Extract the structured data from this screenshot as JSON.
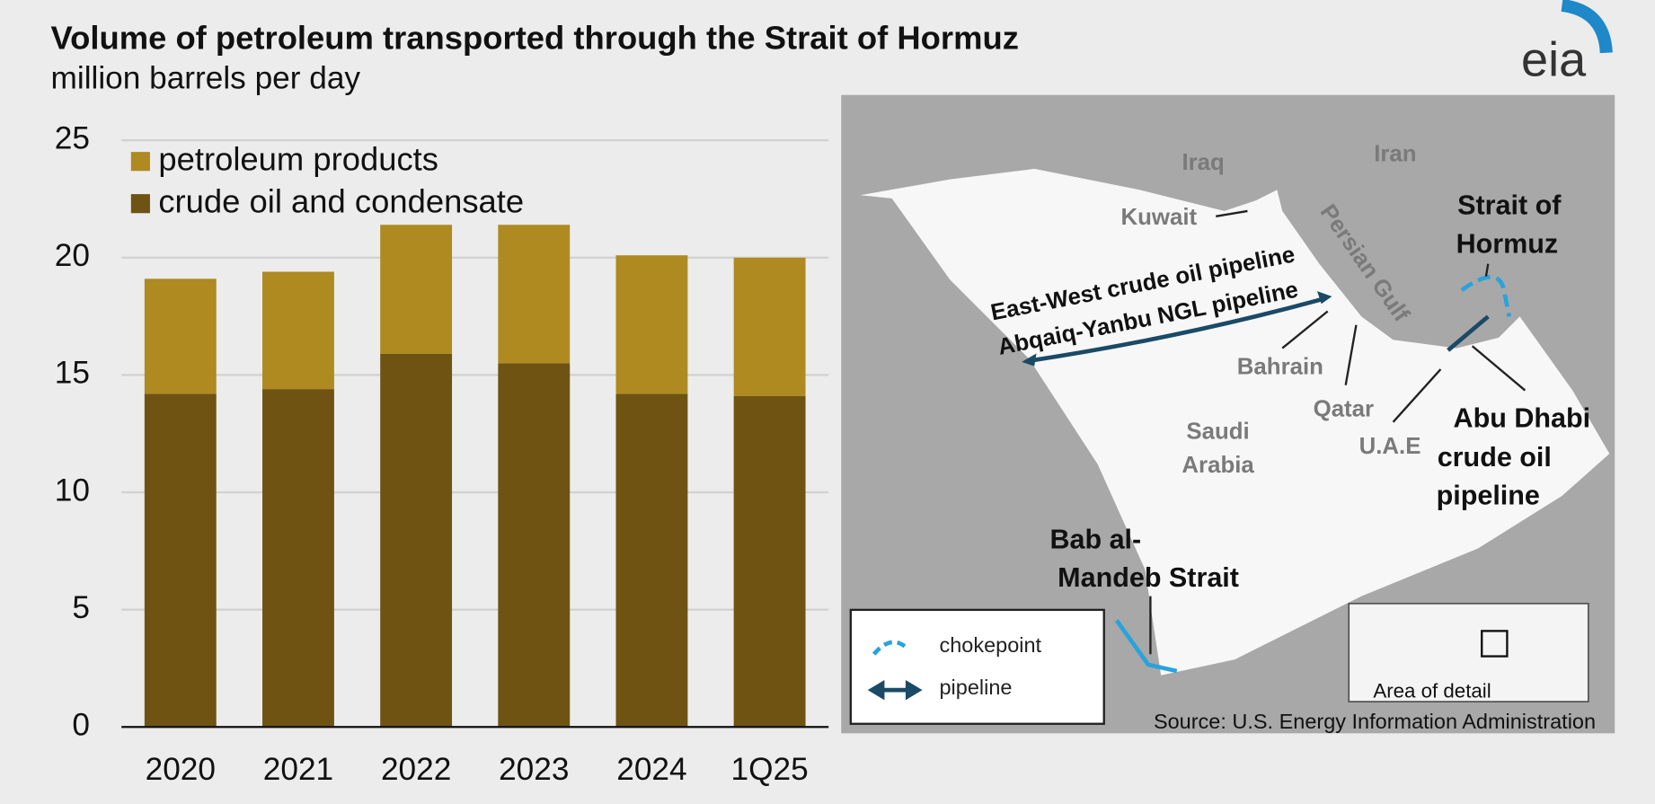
{
  "chart_data": {
    "type": "stacked-bar",
    "title": "Volume of petroleum transported through the Strait of Hormuz",
    "subtitle": "million barrels per day",
    "categories": [
      "2020",
      "2021",
      "2022",
      "2023",
      "2024",
      "1Q25"
    ],
    "series": [
      {
        "name": "crude oil and condensate",
        "color": "#6e5312",
        "values": [
          14.2,
          14.4,
          15.9,
          15.5,
          14.2,
          14.1
        ]
      },
      {
        "name": "petroleum products",
        "color": "#ae8a20",
        "values": [
          4.9,
          5.0,
          5.5,
          5.9,
          5.9,
          5.9
        ]
      }
    ],
    "ylim": [
      0,
      25
    ],
    "yticks": [
      0,
      5,
      10,
      15,
      20,
      25
    ],
    "grid": true
  },
  "logo": "eia",
  "map": {
    "labels": [
      "Iraq",
      "Iran",
      "Kuwait",
      "Persian Gulf",
      "Strait of",
      "Hormuz",
      "East-West crude oil pipeline",
      "Abqaiq-Yanbu NGL pipeline",
      "Bahrain",
      "Qatar",
      "Saudi",
      "Arabia",
      "U.A.E",
      "Abu Dhabi",
      "crude oil",
      "pipeline",
      "Bab al-",
      "Mandeb Strait"
    ],
    "legend": [
      "chokepoint",
      "pipeline"
    ],
    "inset_label": "Area of detail",
    "source": "Source: U.S. Energy Information Administration"
  }
}
